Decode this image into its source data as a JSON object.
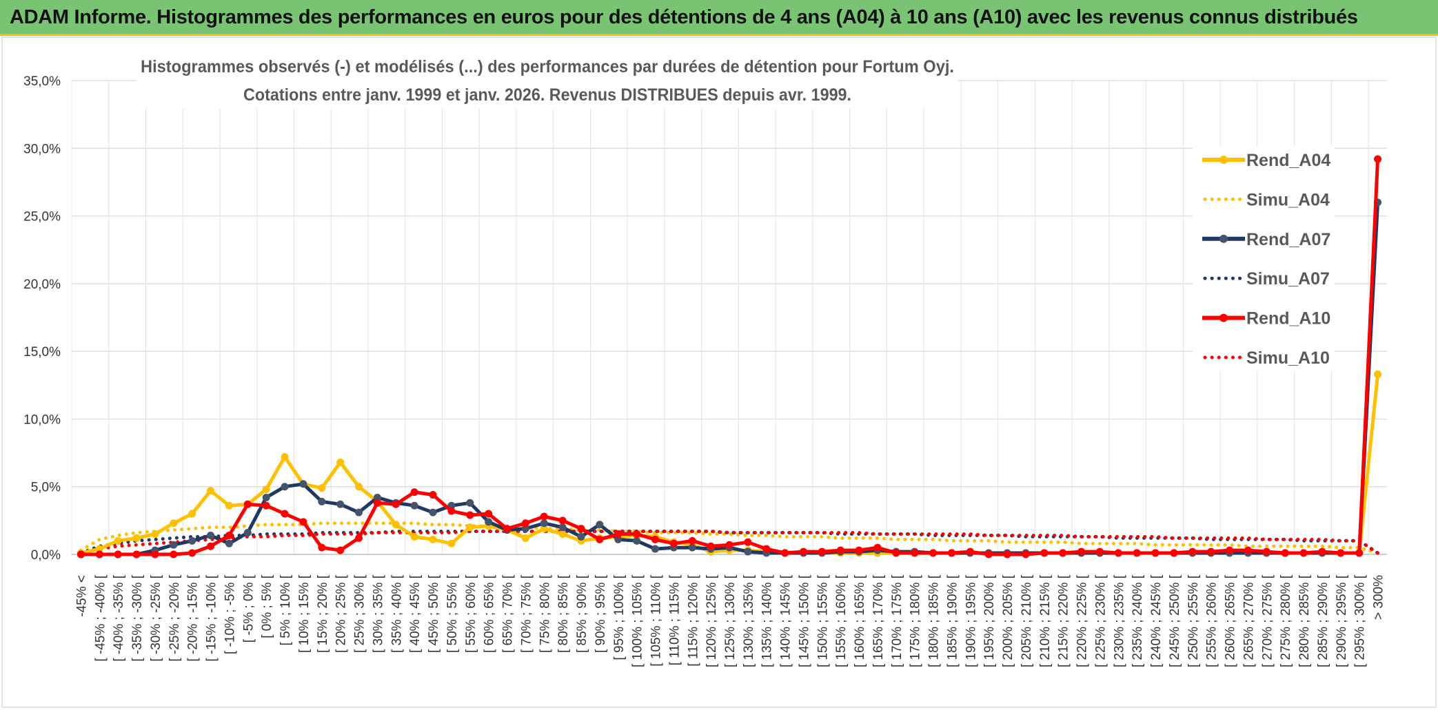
{
  "header": {
    "title": "ADAM Informe. Histogrammes des performances en euros pour des détentions de 4 ans (A04) à 10 ans (A10) avec les revenus connus distribués"
  },
  "chart_data": {
    "type": "line",
    "title_line1": "Histogrammes observés (-) et modélisés (...) des performances par durées de détention pour Fortum Oyj.",
    "title_line2": "Cotations entre janv. 1999 et janv. 2026. Revenus DISTRIBUES depuis avr. 1999.",
    "ylim": [
      0,
      35
    ],
    "yticks": [
      "0,0%",
      "5,0%",
      "10,0%",
      "15,0%",
      "20,0%",
      "25,0%",
      "30,0%",
      "35,0%"
    ],
    "grid": true,
    "legend_position": "right",
    "categories": [
      "-45% <",
      "[ -45% ; -40% [",
      "[ -40% ; -35% [",
      "[ -35% ; -30% [",
      "[ -30% ; -25% [",
      "[ -25% ; -20% [",
      "[ -20% ; -15% [",
      "[ -15% ; -10% [",
      "[ -10% ; -5% [",
      "[ -5% ; 0% [",
      "[ 0% ; 5% [",
      "[ 5% ; 10% [",
      "[ 10% ; 15% [",
      "[ 15% ; 20% [",
      "[ 20% ; 25% [",
      "[ 25% ; 30% [",
      "[ 30% ; 35% [",
      "[ 35% ; 40% [",
      "[ 40% ; 45% [",
      "[ 45% ; 50% [",
      "[ 50% ; 55% [",
      "[ 55% ; 60% [",
      "[ 60% ; 65% [",
      "[ 65% ; 70% [",
      "[ 70% ; 75% [",
      "[ 75% ; 80% [",
      "[ 80% ; 85% [",
      "[ 85% ; 90% [",
      "[ 90% ; 95% [",
      "[ 95% ; 100% [",
      "[ 100% ; 105% [",
      "[ 105% ; 110% [",
      "[ 110% ; 115% [",
      "[ 115% ; 120% [",
      "[ 120% ; 125% [",
      "[ 125% ; 130% [",
      "[ 130% ; 135% [",
      "[ 135% ; 140% [",
      "[ 140% ; 145% [",
      "[ 145% ; 150% [",
      "[ 150% ; 155% [",
      "[ 155% ; 160% [",
      "[ 160% ; 165% [",
      "[ 165% ; 170% [",
      "[ 170% ; 175% [",
      "[ 175% ; 180% [",
      "[ 180% ; 185% [",
      "[ 185% ; 190% [",
      "[ 190% ; 195% [",
      "[ 195% ; 200% [",
      "[ 200% ; 205% [",
      "[ 205% ; 210% [",
      "[ 210% ; 215% [",
      "[ 215% ; 220% [",
      "[ 220% ; 225% [",
      "[ 225% ; 230% [",
      "[ 230% ; 235% [",
      "[ 235% ; 240% [",
      "[ 240% ; 245% [",
      "[ 245% ; 250% [",
      "[ 250% ; 255% [",
      "[ 255% ; 260% [",
      "[ 260% ; 265% [",
      "[ 265% ; 270% [",
      "[ 270% ; 275% [",
      "[ 275% ; 280% [",
      "[ 280% ; 285% [",
      "[ 285% ; 290% [",
      "[ 290% ; 295% [",
      "[ 295% ; 300% [",
      "> 300%"
    ],
    "series": [
      {
        "name": "Rend_A04",
        "style": "solid",
        "color": "#ffc000",
        "values": [
          0.1,
          0.4,
          1.0,
          1.2,
          1.5,
          2.3,
          3.0,
          4.7,
          3.6,
          3.7,
          4.8,
          7.2,
          5.2,
          4.9,
          6.8,
          5.0,
          3.9,
          2.2,
          1.3,
          1.1,
          0.8,
          2.0,
          2.1,
          1.8,
          1.2,
          1.9,
          1.5,
          1.0,
          1.2,
          1.3,
          1.4,
          1.3,
          0.9,
          0.7,
          0.2,
          0.3,
          0.3,
          0.2,
          0.1,
          0.1,
          0.1,
          0.1,
          0.1,
          0.1,
          0.1,
          0.1,
          0.1,
          0.1,
          0.1,
          0.1,
          0.1,
          0.1,
          0.1,
          0.1,
          0.1,
          0.1,
          0.1,
          0.1,
          0.1,
          0.1,
          0.1,
          0.1,
          0.1,
          0.1,
          0.1,
          0.1,
          0.1,
          0.1,
          0.1,
          0.1,
          13.3
        ]
      },
      {
        "name": "Simu_A04",
        "style": "dotted",
        "color": "#ffc000",
        "values": [
          0.3,
          1.1,
          1.4,
          1.6,
          1.7,
          1.8,
          1.9,
          2.0,
          2.0,
          2.1,
          2.2,
          2.2,
          2.2,
          2.3,
          2.3,
          2.3,
          2.3,
          2.3,
          2.3,
          2.2,
          2.2,
          2.1,
          2.1,
          2.0,
          2.0,
          1.9,
          1.9,
          1.8,
          1.8,
          1.7,
          1.7,
          1.6,
          1.6,
          1.6,
          1.5,
          1.5,
          1.4,
          1.4,
          1.3,
          1.3,
          1.3,
          1.2,
          1.2,
          1.2,
          1.1,
          1.1,
          1.1,
          1.0,
          1.0,
          1.0,
          0.9,
          0.9,
          0.9,
          0.9,
          0.8,
          0.8,
          0.8,
          0.8,
          0.7,
          0.7,
          0.7,
          0.7,
          0.7,
          0.6,
          0.6,
          0.6,
          0.6,
          0.6,
          0.5,
          0.5,
          0.1
        ]
      },
      {
        "name": "Rend_A07",
        "style": "solid",
        "color": "#1f3864",
        "values": [
          0.0,
          0.0,
          0.0,
          0.0,
          0.3,
          0.7,
          1.0,
          1.4,
          0.8,
          1.6,
          4.2,
          5.0,
          5.2,
          3.9,
          3.7,
          3.1,
          4.2,
          3.8,
          3.6,
          3.1,
          3.6,
          3.8,
          2.4,
          1.8,
          1.9,
          2.3,
          2.0,
          1.3,
          2.2,
          1.1,
          1.0,
          0.4,
          0.5,
          0.5,
          0.4,
          0.5,
          0.2,
          0.1,
          0.1,
          0.1,
          0.1,
          0.2,
          0.2,
          0.3,
          0.2,
          0.2,
          0.1,
          0.1,
          0.1,
          0.1,
          0.1,
          0.1,
          0.1,
          0.1,
          0.1,
          0.1,
          0.1,
          0.1,
          0.1,
          0.1,
          0.1,
          0.1,
          0.1,
          0.1,
          0.1,
          0.1,
          0.1,
          0.1,
          0.1,
          0.1,
          26.0
        ]
      },
      {
        "name": "Simu_A07",
        "style": "dotted",
        "color": "#1f3864",
        "values": [
          0.1,
          0.6,
          0.8,
          1.0,
          1.1,
          1.2,
          1.3,
          1.3,
          1.4,
          1.4,
          1.5,
          1.5,
          1.5,
          1.6,
          1.6,
          1.6,
          1.6,
          1.7,
          1.7,
          1.7,
          1.7,
          1.7,
          1.7,
          1.7,
          1.7,
          1.7,
          1.7,
          1.7,
          1.7,
          1.7,
          1.7,
          1.7,
          1.7,
          1.7,
          1.7,
          1.6,
          1.6,
          1.6,
          1.6,
          1.6,
          1.6,
          1.5,
          1.5,
          1.5,
          1.5,
          1.5,
          1.4,
          1.4,
          1.4,
          1.4,
          1.4,
          1.3,
          1.3,
          1.3,
          1.3,
          1.3,
          1.2,
          1.2,
          1.2,
          1.2,
          1.2,
          1.1,
          1.1,
          1.1,
          1.1,
          1.1,
          1.0,
          1.0,
          1.0,
          1.0,
          0.1
        ]
      },
      {
        "name": "Rend_A10",
        "style": "solid",
        "color": "#ff0000",
        "values": [
          0.0,
          0.0,
          0.0,
          0.0,
          0.0,
          0.0,
          0.1,
          0.6,
          1.4,
          3.7,
          3.6,
          3.0,
          2.4,
          0.5,
          0.3,
          1.2,
          3.8,
          3.7,
          4.6,
          4.4,
          3.2,
          2.9,
          3.0,
          1.9,
          2.3,
          2.8,
          2.5,
          1.9,
          1.1,
          1.5,
          1.5,
          1.1,
          0.8,
          1.0,
          0.6,
          0.7,
          0.9,
          0.4,
          0.1,
          0.2,
          0.2,
          0.3,
          0.3,
          0.5,
          0.1,
          0.1,
          0.1,
          0.1,
          0.2,
          0.0,
          0.0,
          0.0,
          0.1,
          0.1,
          0.2,
          0.2,
          0.1,
          0.1,
          0.1,
          0.1,
          0.2,
          0.2,
          0.3,
          0.3,
          0.2,
          0.1,
          0.1,
          0.2,
          0.1,
          0.1,
          29.2
        ]
      },
      {
        "name": "Simu_A10",
        "style": "dotted",
        "color": "#ff0000",
        "values": [
          0.1,
          0.4,
          0.6,
          0.7,
          0.8,
          0.9,
          1.0,
          1.1,
          1.2,
          1.3,
          1.3,
          1.4,
          1.4,
          1.5,
          1.5,
          1.5,
          1.6,
          1.6,
          1.6,
          1.6,
          1.6,
          1.7,
          1.7,
          1.7,
          1.7,
          1.7,
          1.7,
          1.7,
          1.7,
          1.7,
          1.7,
          1.7,
          1.7,
          1.7,
          1.7,
          1.6,
          1.6,
          1.6,
          1.6,
          1.6,
          1.6,
          1.6,
          1.6,
          1.5,
          1.5,
          1.5,
          1.5,
          1.5,
          1.5,
          1.4,
          1.4,
          1.4,
          1.4,
          1.4,
          1.3,
          1.3,
          1.3,
          1.3,
          1.3,
          1.2,
          1.2,
          1.2,
          1.2,
          1.2,
          1.1,
          1.1,
          1.1,
          1.1,
          1.0,
          1.0,
          0.1
        ]
      }
    ]
  }
}
